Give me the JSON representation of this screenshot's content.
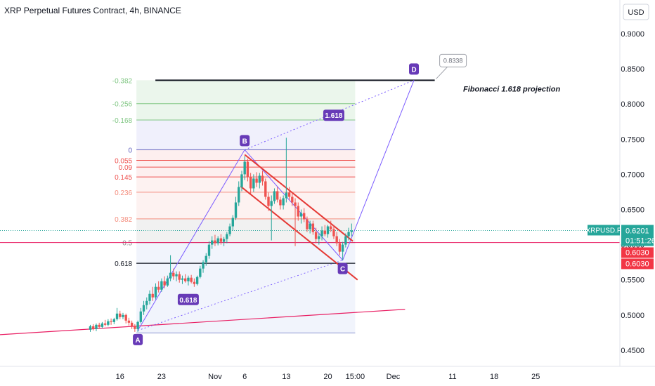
{
  "chart_data": {
    "type": "candlestick",
    "title": "XRP Perpetual Futures Contract, 4h, BINANCE",
    "currency": "USD",
    "price_axis_ticks": [
      "0.9000",
      "0.8500",
      "0.8000",
      "0.7500",
      "0.7000",
      "0.6500",
      "0.6000",
      "0.5500",
      "0.5000",
      "0.4500"
    ],
    "price_axis_values": [
      0.9,
      0.85,
      0.8,
      0.75,
      0.7,
      0.65,
      0.6,
      0.55,
      0.5,
      0.45
    ],
    "ylim": [
      0.4265,
      0.9285
    ],
    "time_axis_ticks": [
      {
        "label": "16",
        "day": -15
      },
      {
        "label": "23",
        "day": -8
      },
      {
        "label": "Nov",
        "day": 1
      },
      {
        "label": "6",
        "day": 6
      },
      {
        "label": "13",
        "day": 13
      },
      {
        "label": "20",
        "day": 20
      },
      {
        "label": "15:00",
        "day": 24.6
      },
      {
        "label": "Dec",
        "day": 31
      },
      {
        "label": "11",
        "day": 41
      },
      {
        "label": "18",
        "day": 48
      },
      {
        "label": "25",
        "day": 55
      }
    ],
    "symbol_tag": {
      "label": "XRPUSD.P",
      "price": "0.6201",
      "countdown": "01:51:26",
      "color": "#26a69a"
    },
    "mark_tags": [
      {
        "price": "0.6030",
        "color": "#f23645"
      },
      {
        "price": "0.6030",
        "color": "#f23645"
      }
    ],
    "current_price": 0.6201,
    "horizontal_line_price": 0.603,
    "fib_levels": [
      {
        "label": "-0.382",
        "price": 0.8338,
        "color": "#81c784"
      },
      {
        "label": "-0.256",
        "price": 0.8005,
        "color": "#81c784"
      },
      {
        "label": "-0.168",
        "price": 0.7773,
        "color": "#81c784"
      },
      {
        "label": "0",
        "price": 0.7349,
        "color": "#5e5ebd"
      },
      {
        "label": "0.055",
        "price": 0.7198,
        "color": "#ef5350"
      },
      {
        "label": "0.09",
        "price": 0.7103,
        "color": "#ef5350"
      },
      {
        "label": "0.145",
        "price": 0.6963,
        "color": "#ef5350"
      },
      {
        "label": "0.236",
        "price": 0.6746,
        "color": "#f48c7c"
      },
      {
        "label": "0.382",
        "price": 0.6367,
        "color": "#f48c7c"
      },
      {
        "label": "0.5",
        "price": 0.603,
        "color": "#888888"
      },
      {
        "label": "0.618",
        "price": 0.5735,
        "color": "#131722"
      }
    ],
    "fib_zone_bottom_price": 0.4745,
    "points": [
      {
        "label": "A",
        "day": -12,
        "price": 0.478
      },
      {
        "label": "B",
        "day": 6,
        "price": 0.7349
      },
      {
        "label": "C",
        "day": 22.5,
        "price": 0.578
      },
      {
        "label": "D",
        "day": 34.5,
        "price": 0.8338
      }
    ],
    "ratio_labels": [
      {
        "label": "1.618",
        "day": 21,
        "price": 0.784
      },
      {
        "label": "0.618",
        "day": -3.5,
        "price": 0.522
      }
    ],
    "target_line": {
      "price": 0.8338,
      "from_day": -12,
      "to_day": 38
    },
    "target_callout": "0.8338",
    "annotation": "Fibonacci 1.618 projection",
    "channel": {
      "upper": [
        [
          6,
          0.728
        ],
        [
          24.2,
          0.605
        ]
      ],
      "lower": [
        [
          5.3,
          0.683
        ],
        [
          25,
          0.55
        ]
      ]
    },
    "trendline": [
      [
        -20,
        0.472
      ],
      [
        33,
        0.508
      ]
    ],
    "candles": [
      [
        -20,
        0.479,
        0.486,
        0.476,
        0.484
      ],
      [
        -19.5,
        0.484,
        0.487,
        0.478,
        0.48
      ],
      [
        -19,
        0.48,
        0.488,
        0.477,
        0.486
      ],
      [
        -18.5,
        0.486,
        0.489,
        0.481,
        0.483
      ],
      [
        -18,
        0.483,
        0.49,
        0.481,
        0.488
      ],
      [
        -17.5,
        0.488,
        0.493,
        0.484,
        0.486
      ],
      [
        -17,
        0.486,
        0.494,
        0.484,
        0.491
      ],
      [
        -16.5,
        0.491,
        0.495,
        0.486,
        0.49
      ],
      [
        -16,
        0.49,
        0.496,
        0.487,
        0.494
      ],
      [
        -15.5,
        0.494,
        0.51,
        0.492,
        0.502
      ],
      [
        -15,
        0.502,
        0.506,
        0.494,
        0.497
      ],
      [
        -14.5,
        0.497,
        0.503,
        0.494,
        0.5
      ],
      [
        -14,
        0.5,
        0.502,
        0.488,
        0.492
      ],
      [
        -13.5,
        0.492,
        0.496,
        0.485,
        0.489
      ],
      [
        -13,
        0.489,
        0.492,
        0.48,
        0.484
      ],
      [
        -12.5,
        0.484,
        0.487,
        0.476,
        0.48
      ],
      [
        -12,
        0.48,
        0.492,
        0.476,
        0.49
      ],
      [
        -11.5,
        0.49,
        0.51,
        0.488,
        0.505
      ],
      [
        -11,
        0.505,
        0.52,
        0.5,
        0.514
      ],
      [
        -10.5,
        0.514,
        0.525,
        0.508,
        0.52
      ],
      [
        -10,
        0.52,
        0.535,
        0.515,
        0.53
      ],
      [
        -9.5,
        0.53,
        0.54,
        0.52,
        0.525
      ],
      [
        -9,
        0.525,
        0.545,
        0.522,
        0.54
      ],
      [
        -8.5,
        0.54,
        0.548,
        0.532,
        0.536
      ],
      [
        -8,
        0.536,
        0.552,
        0.533,
        0.548
      ],
      [
        -7.5,
        0.548,
        0.555,
        0.538,
        0.542
      ],
      [
        -7,
        0.542,
        0.556,
        0.54,
        0.552
      ],
      [
        -6.5,
        0.552,
        0.585,
        0.548,
        0.56
      ],
      [
        -6,
        0.56,
        0.566,
        0.55,
        0.555
      ],
      [
        -5.5,
        0.555,
        0.562,
        0.548,
        0.558
      ],
      [
        -5,
        0.558,
        0.562,
        0.546,
        0.55
      ],
      [
        -4.5,
        0.55,
        0.556,
        0.544,
        0.552
      ],
      [
        -4,
        0.552,
        0.558,
        0.546,
        0.548
      ],
      [
        -3.5,
        0.548,
        0.556,
        0.542,
        0.553
      ],
      [
        -3,
        0.553,
        0.557,
        0.545,
        0.547
      ],
      [
        -2.5,
        0.547,
        0.552,
        0.54,
        0.544
      ],
      [
        -2,
        0.544,
        0.556,
        0.542,
        0.554
      ],
      [
        -1.5,
        0.554,
        0.57,
        0.552,
        0.566
      ],
      [
        -1,
        0.566,
        0.578,
        0.56,
        0.575
      ],
      [
        -0.5,
        0.575,
        0.588,
        0.57,
        0.584
      ],
      [
        0,
        0.584,
        0.605,
        0.58,
        0.6
      ],
      [
        0.5,
        0.6,
        0.612,
        0.594,
        0.606
      ],
      [
        1,
        0.606,
        0.614,
        0.598,
        0.602
      ],
      [
        1.5,
        0.602,
        0.612,
        0.599,
        0.609
      ],
      [
        2,
        0.609,
        0.615,
        0.6,
        0.604
      ],
      [
        2.5,
        0.604,
        0.611,
        0.598,
        0.608
      ],
      [
        3,
        0.608,
        0.618,
        0.602,
        0.615
      ],
      [
        3.5,
        0.615,
        0.63,
        0.612,
        0.626
      ],
      [
        4,
        0.626,
        0.642,
        0.62,
        0.638
      ],
      [
        4.5,
        0.638,
        0.668,
        0.635,
        0.66
      ],
      [
        5,
        0.66,
        0.69,
        0.655,
        0.682
      ],
      [
        5.5,
        0.682,
        0.705,
        0.676,
        0.7
      ],
      [
        6,
        0.7,
        0.726,
        0.692,
        0.718
      ],
      [
        6.5,
        0.718,
        0.722,
        0.69,
        0.696
      ],
      [
        7,
        0.696,
        0.702,
        0.672,
        0.68
      ],
      [
        7.5,
        0.68,
        0.7,
        0.675,
        0.694
      ],
      [
        8,
        0.694,
        0.703,
        0.682,
        0.688
      ],
      [
        8.5,
        0.688,
        0.702,
        0.68,
        0.698
      ],
      [
        9,
        0.698,
        0.705,
        0.684,
        0.69
      ],
      [
        9.5,
        0.69,
        0.694,
        0.664,
        0.668
      ],
      [
        10,
        0.668,
        0.674,
        0.648,
        0.655
      ],
      [
        10.5,
        0.655,
        0.67,
        0.606,
        0.662
      ],
      [
        11,
        0.662,
        0.68,
        0.658,
        0.676
      ],
      [
        11.5,
        0.676,
        0.682,
        0.66,
        0.664
      ],
      [
        12,
        0.664,
        0.668,
        0.65,
        0.656
      ],
      [
        12.5,
        0.656,
        0.67,
        0.65,
        0.666
      ],
      [
        13,
        0.666,
        0.752,
        0.66,
        0.674
      ],
      [
        13.5,
        0.674,
        0.682,
        0.664,
        0.668
      ],
      [
        14,
        0.668,
        0.675,
        0.655,
        0.66
      ],
      [
        14.5,
        0.66,
        0.666,
        0.598,
        0.655
      ],
      [
        15,
        0.655,
        0.66,
        0.634,
        0.64
      ],
      [
        15.5,
        0.64,
        0.65,
        0.63,
        0.645
      ],
      [
        16,
        0.645,
        0.652,
        0.632,
        0.636
      ],
      [
        16.5,
        0.636,
        0.64,
        0.618,
        0.622
      ],
      [
        17,
        0.622,
        0.634,
        0.616,
        0.63
      ],
      [
        17.5,
        0.63,
        0.634,
        0.614,
        0.618
      ],
      [
        18,
        0.618,
        0.624,
        0.602,
        0.608
      ],
      [
        18.5,
        0.608,
        0.616,
        0.6,
        0.612
      ],
      [
        19,
        0.612,
        0.626,
        0.606,
        0.62
      ],
      [
        19.5,
        0.62,
        0.628,
        0.612,
        0.615
      ],
      [
        20,
        0.615,
        0.628,
        0.61,
        0.626
      ],
      [
        20.5,
        0.626,
        0.634,
        0.618,
        0.622
      ],
      [
        21,
        0.622,
        0.628,
        0.608,
        0.612
      ],
      [
        21.5,
        0.612,
        0.618,
        0.598,
        0.602
      ],
      [
        22,
        0.602,
        0.608,
        0.585,
        0.59
      ],
      [
        22.5,
        0.59,
        0.604,
        0.578,
        0.6
      ],
      [
        23,
        0.6,
        0.616,
        0.596,
        0.612
      ],
      [
        23.5,
        0.612,
        0.624,
        0.606,
        0.618
      ],
      [
        24,
        0.618,
        0.63,
        0.612,
        0.62
      ]
    ]
  }
}
